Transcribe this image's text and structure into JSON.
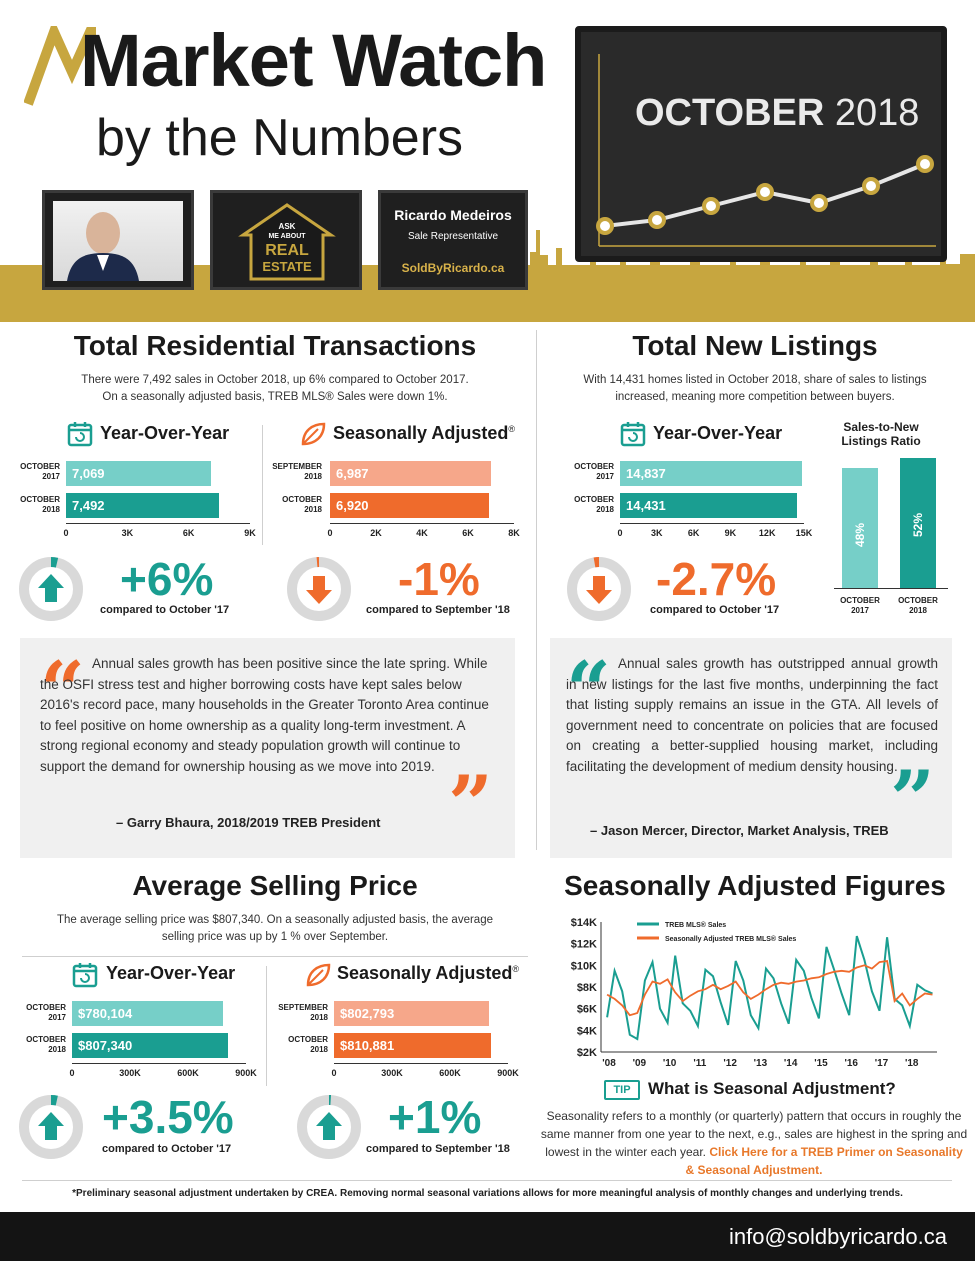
{
  "header": {
    "title_line1": "Market Watch",
    "title_line2": "by the Numbers",
    "month_bold": "OCTOBER",
    "year": "2018",
    "sign_lines": [
      "ASK",
      "ME ABOUT",
      "REAL",
      "ESTATE"
    ],
    "agent_name": "Ricardo Medeiros",
    "agent_role": "Sale Representative",
    "agent_site": "SoldByRicardo.ca"
  },
  "colors": {
    "teal": "#1a9e91",
    "teal_light": "#76cfc8",
    "orange": "#ef6b2c",
    "orange_light": "#f6a78a",
    "gold": "#c7a63f",
    "dark": "#1f1f1f"
  },
  "transactions": {
    "title": "Total Residential Transactions",
    "subtitle_line1": "There were 7,492 sales in October 2018, up 6% compared to October 2017.",
    "subtitle_line2": "On a seasonally adjusted basis, TREB MLS® Sales were down 1%.",
    "yoy": {
      "heading": "Year-Over-Year",
      "rows": [
        {
          "label_l1": "OCTOBER",
          "label_l2": "2017",
          "value_text": "7,069"
        },
        {
          "label_l1": "OCTOBER",
          "label_l2": "2018",
          "value_text": "7,492"
        }
      ],
      "ticks": [
        "0",
        "3K",
        "6K",
        "9K"
      ],
      "pct": "+6%",
      "caption": "compared to October '17"
    },
    "sa": {
      "heading": "Seasonally Adjusted",
      "sup": "®",
      "rows": [
        {
          "label_l1": "SEPTEMBER",
          "label_l2": "2018",
          "value_text": "6,987"
        },
        {
          "label_l1": "OCTOBER",
          "label_l2": "2018",
          "value_text": "6,920"
        }
      ],
      "ticks": [
        "0",
        "2K",
        "4K",
        "6K",
        "8K"
      ],
      "pct": "-1%",
      "caption": "compared to September '18"
    },
    "quote": {
      "text": "Annual sales growth has been positive since the late spring. While the OSFI stress test and higher borrowing costs have kept sales below 2016's record pace, many households in the Greater Toronto Area continue to feel positive on home ownership as a quality long-term investment. A strong regional economy and steady population growth will continue to support the demand for ownership housing as we move into 2019.",
      "author": "– Garry Bhaura, 2018/2019 TREB President"
    }
  },
  "listings": {
    "title": "Total New Listings",
    "subtitle_line1": "With 14,431 homes listed in October 2018, share of sales to listings",
    "subtitle_line2": "increased, meaning more competition between buyers.",
    "yoy": {
      "heading": "Year-Over-Year",
      "rows": [
        {
          "label_l1": "OCTOBER",
          "label_l2": "2017",
          "value_text": "14,837"
        },
        {
          "label_l1": "OCTOBER",
          "label_l2": "2018",
          "value_text": "14,431"
        }
      ],
      "ticks": [
        "0",
        "3K",
        "6K",
        "9K",
        "12K",
        "15K"
      ],
      "pct": "-2.7%",
      "caption": "compared to October '17"
    },
    "ratio": {
      "heading_l1": "Sales-to-New",
      "heading_l2": "Listings Ratio",
      "bars": [
        {
          "value": "48%",
          "label_l1": "OCTOBER",
          "label_l2": "2017"
        },
        {
          "value": "52%",
          "label_l1": "OCTOBER",
          "label_l2": "2018"
        }
      ]
    },
    "quote": {
      "text": "Annual sales growth has outstripped annual growth in new listings for the last five months, underpinning the fact that listing supply remains an issue in the GTA. All levels of government need to concentrate on policies that are focused on creating a better-supplied housing market, including facilitating the development of medium density housing.",
      "author": "– Jason Mercer, Director, Market Analysis, TREB"
    }
  },
  "price": {
    "title": "Average Selling Price",
    "subtitle_line1": "The average selling price was $807,340. On a seasonally adjusted basis, the average",
    "subtitle_line2": "selling price was up by 1 % over September.",
    "yoy": {
      "heading": "Year-Over-Year",
      "rows": [
        {
          "label_l1": "OCTOBER",
          "label_l2": "2017",
          "value_text": "$780,104"
        },
        {
          "label_l1": "OCTOBER",
          "label_l2": "2018",
          "value_text": "$807,340"
        }
      ],
      "ticks": [
        "0",
        "300K",
        "600K",
        "900K"
      ],
      "pct": "+3.5%",
      "caption": "compared to October '17"
    },
    "sa": {
      "heading": "Seasonally Adjusted",
      "sup": "®",
      "rows": [
        {
          "label_l1": "SEPTEMBER",
          "label_l2": "2018",
          "value_text": "$802,793"
        },
        {
          "label_l1": "OCTOBER",
          "label_l2": "2018",
          "value_text": "$810,881"
        }
      ],
      "ticks": [
        "0",
        "300K",
        "600K",
        "900K"
      ],
      "pct": "+1%",
      "caption": "compared to September '18"
    }
  },
  "seasonal": {
    "title": "Seasonally Adjusted Figures",
    "legend": [
      "TREB MLS® Sales",
      "Seasonally Adjusted TREB MLS® Sales"
    ],
    "y_ticks": [
      "$14K",
      "$12K",
      "$10K",
      "$8K",
      "$6K",
      "$4K",
      "$2K"
    ],
    "x_ticks": [
      "'08",
      "'09",
      "'10",
      "'11",
      "'12",
      "'13",
      "'14",
      "'15",
      "'16",
      "'17",
      "'18"
    ],
    "tip_badge": "TIP",
    "tip_title": "What is Seasonal Adjustment?",
    "tip_text": "Seasonality refers to a monthly (or quarterly) pattern that occurs in roughly the same manner from one year to the next, e.g., sales are highest in the spring and lowest in the winter each year.",
    "tip_link": "Click Here for a TREB Primer on Seasonality & Seasonal Adjustment."
  },
  "footnote": "*Preliminary seasonal adjustment undertaken by CREA. Removing normal seasonal variations allows for more meaningful analysis of monthly changes and underlying trends.",
  "footer_email": "info@soldbyricardo.ca",
  "chart_data": [
    {
      "type": "bar",
      "title": "Total Residential Transactions — Year-Over-Year",
      "categories": [
        "OCTOBER 2017",
        "OCTOBER 2018"
      ],
      "values": [
        7069,
        7492
      ],
      "xlim": [
        0,
        9000
      ]
    },
    {
      "type": "bar",
      "title": "Total Residential Transactions — Seasonally Adjusted",
      "categories": [
        "SEPTEMBER 2018",
        "OCTOBER 2018"
      ],
      "values": [
        6987,
        6920
      ],
      "xlim": [
        0,
        8000
      ]
    },
    {
      "type": "bar",
      "title": "Total New Listings — Year-Over-Year",
      "categories": [
        "OCTOBER 2017",
        "OCTOBER 2018"
      ],
      "values": [
        14837,
        14431
      ],
      "xlim": [
        0,
        15000
      ]
    },
    {
      "type": "bar",
      "title": "Sales-to-New Listings Ratio",
      "categories": [
        "OCTOBER 2017",
        "OCTOBER 2018"
      ],
      "values": [
        48,
        52
      ]
    },
    {
      "type": "bar",
      "title": "Average Selling Price — Year-Over-Year",
      "categories": [
        "OCTOBER 2017",
        "OCTOBER 2018"
      ],
      "values": [
        780104,
        807340
      ],
      "xlim": [
        0,
        900000
      ]
    },
    {
      "type": "bar",
      "title": "Average Selling Price — Seasonally Adjusted",
      "categories": [
        "SEPTEMBER 2018",
        "OCTOBER 2018"
      ],
      "values": [
        802793,
        810881
      ],
      "xlim": [
        0,
        900000
      ]
    },
    {
      "type": "line",
      "title": "Seasonally Adjusted Figures",
      "ylim": [
        2000,
        14000
      ],
      "x": [
        2008.0,
        2008.25,
        2008.5,
        2008.75,
        2009.0,
        2009.25,
        2009.5,
        2009.75,
        2010.0,
        2010.25,
        2010.5,
        2010.75,
        2011.0,
        2011.25,
        2011.5,
        2011.75,
        2012.0,
        2012.25,
        2012.5,
        2012.75,
        2013.0,
        2013.25,
        2013.5,
        2013.75,
        2014.0,
        2014.25,
        2014.5,
        2014.75,
        2015.0,
        2015.25,
        2015.5,
        2015.75,
        2016.0,
        2016.25,
        2016.5,
        2016.75,
        2017.0,
        2017.25,
        2017.5,
        2017.75,
        2018.0,
        2018.25,
        2018.5,
        2018.75
      ],
      "series": [
        {
          "name": "TREB MLS® Sales",
          "values": [
            5200,
            9500,
            7600,
            3600,
            3200,
            8600,
            10300,
            6000,
            4700,
            10900,
            6500,
            5800,
            4400,
            9600,
            9000,
            6600,
            4500,
            10400,
            8600,
            5400,
            4200,
            9700,
            8800,
            6500,
            4600,
            10500,
            9500,
            7000,
            5100,
            11700,
            9600,
            7400,
            5400,
            12700,
            10500,
            7600,
            5800,
            12600,
            6900,
            6300,
            4400,
            8200,
            7700,
            7400
          ]
        },
        {
          "name": "Seasonally Adjusted TREB MLS® Sales",
          "values": [
            7300,
            6900,
            6300,
            5400,
            5600,
            7300,
            8500,
            8300,
            8700,
            7500,
            6700,
            7200,
            7600,
            7800,
            8200,
            7800,
            8100,
            8500,
            7500,
            6900,
            7300,
            7800,
            8200,
            8400,
            8300,
            8500,
            8600,
            8800,
            8900,
            9200,
            9400,
            9500,
            9400,
            9800,
            10000,
            9700,
            10300,
            10400,
            6700,
            7400,
            6300,
            6900,
            7400,
            7300
          ]
        }
      ]
    }
  ]
}
